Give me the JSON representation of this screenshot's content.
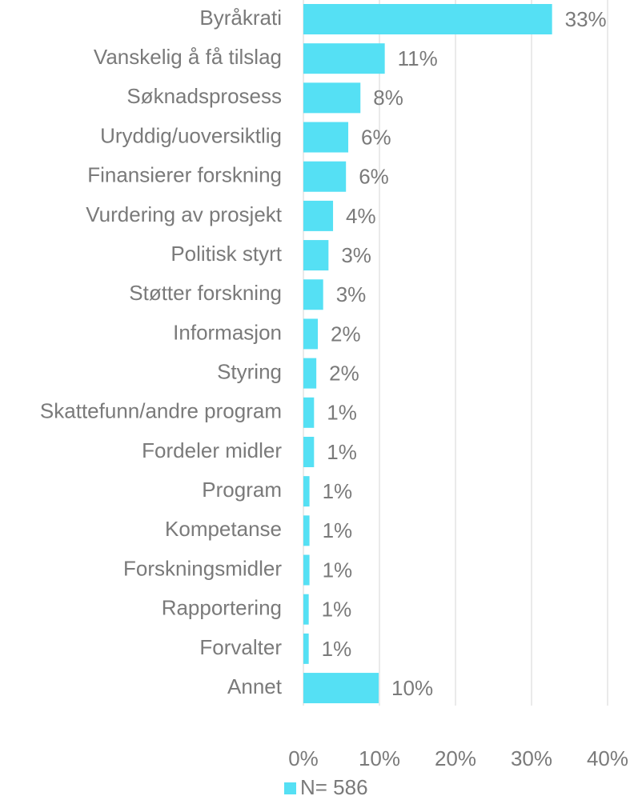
{
  "chart_data": {
    "type": "bar",
    "orientation": "horizontal",
    "categories": [
      "Byråkrati",
      "Vanskelig å få tilslag",
      "Søknadsprosess",
      "Uryddig/uoversiktlig",
      "Finansierer forskning",
      "Vurdering av prosjekt",
      "Politisk styrt",
      "Støtter forskning",
      "Informasjon",
      "Styring",
      "Skattefunn/andre program",
      "Fordeler midler",
      "Program",
      "Kompetanse",
      "Forskningsmidler",
      "Rapportering",
      "Forvalter",
      "Annet"
    ],
    "series": [
      {
        "name": "N= 586",
        "color": "#55e0f4",
        "values": [
          32.7,
          10.7,
          7.5,
          5.9,
          5.6,
          3.9,
          3.3,
          2.6,
          1.9,
          1.7,
          1.4,
          1.4,
          0.8,
          0.8,
          0.8,
          0.7,
          0.7,
          9.9
        ],
        "value_labels": [
          "33%",
          "11%",
          "8%",
          "6%",
          "6%",
          "4%",
          "3%",
          "3%",
          "2%",
          "2%",
          "1%",
          "1%",
          "1%",
          "1%",
          "1%",
          "1%",
          "1%",
          "10%"
        ]
      }
    ],
    "xlim": [
      0,
      40
    ],
    "xticks": [
      {
        "value": 0,
        "label": "0%"
      },
      {
        "value": 10,
        "label": "10%"
      },
      {
        "value": 20,
        "label": "20%"
      },
      {
        "value": 30,
        "label": "30%"
      },
      {
        "value": 40,
        "label": "40%"
      }
    ],
    "grid": true,
    "legend": "bottom"
  }
}
